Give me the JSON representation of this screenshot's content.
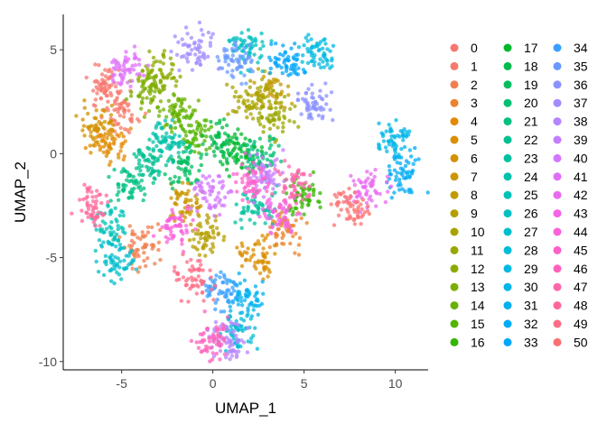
{
  "chart_data": {
    "type": "scatter",
    "title": "",
    "xlabel": "UMAP_1",
    "ylabel": "UMAP_2",
    "xlim": [
      -8.2,
      11.8
    ],
    "ylim": [
      -10.4,
      6.7
    ],
    "x_ticks": [
      -5,
      0,
      5,
      10
    ],
    "y_ticks": [
      -10,
      -5,
      0,
      5
    ],
    "grid": false,
    "legend_placement": "right",
    "legend_columns": 3,
    "cluster_count": 51,
    "legend": [
      "0",
      "1",
      "2",
      "3",
      "4",
      "5",
      "6",
      "7",
      "8",
      "9",
      "10",
      "11",
      "12",
      "13",
      "14",
      "15",
      "16",
      "17",
      "18",
      "19",
      "20",
      "21",
      "22",
      "23",
      "24",
      "25",
      "26",
      "27",
      "28",
      "29",
      "30",
      "31",
      "32",
      "33",
      "34",
      "35",
      "36",
      "37",
      "38",
      "39",
      "40",
      "41",
      "42",
      "43",
      "44",
      "45",
      "46",
      "47",
      "48",
      "49",
      "50"
    ],
    "series": [
      {
        "name": "0",
        "color": "#F8766D",
        "center": [
          -6.0,
          3.2
        ]
      },
      {
        "name": "1",
        "color": "#F7796B",
        "center": [
          -5.0,
          2.0
        ]
      },
      {
        "name": "2",
        "color": "#F07E4F",
        "center": [
          -4.0,
          -4.3
        ]
      },
      {
        "name": "3",
        "color": "#EA842F",
        "center": [
          4.0,
          -3.6
        ]
      },
      {
        "name": "4",
        "color": "#E38900",
        "center": [
          -5.7,
          0.5
        ]
      },
      {
        "name": "5",
        "color": "#DB8E00",
        "center": [
          2.5,
          -5.0
        ]
      },
      {
        "name": "6",
        "color": "#D39200",
        "center": [
          -6.3,
          1.3
        ]
      },
      {
        "name": "7",
        "color": "#C99700",
        "center": [
          -1.6,
          -2.5
        ]
      },
      {
        "name": "8",
        "color": "#BF9B00",
        "center": [
          3.1,
          3.0
        ]
      },
      {
        "name": "9",
        "color": "#B59F00",
        "center": [
          -0.3,
          -4.0
        ]
      },
      {
        "name": "10",
        "color": "#A8A300",
        "center": [
          2.0,
          2.5
        ]
      },
      {
        "name": "11",
        "color": "#9BA700",
        "center": [
          3.5,
          1.8
        ]
      },
      {
        "name": "12",
        "color": "#8CAB00",
        "center": [
          -3.0,
          4.0
        ]
      },
      {
        "name": "13",
        "color": "#7CAE00",
        "center": [
          -3.5,
          3.0
        ]
      },
      {
        "name": "14",
        "color": "#69B100",
        "center": [
          -2.0,
          2.0
        ]
      },
      {
        "name": "15",
        "color": "#53B400",
        "center": [
          -1.0,
          1.0
        ]
      },
      {
        "name": "16",
        "color": "#33B700",
        "center": [
          5.0,
          -2.0
        ]
      },
      {
        "name": "17",
        "color": "#00B92B",
        "center": [
          1.5,
          0.0
        ]
      },
      {
        "name": "18",
        "color": "#00BB4B",
        "center": [
          0.5,
          0.5
        ]
      },
      {
        "name": "19",
        "color": "#00BD61",
        "center": [
          -1.5,
          -0.5
        ]
      },
      {
        "name": "20",
        "color": "#00BE73",
        "center": [
          2.5,
          0.2
        ]
      },
      {
        "name": "21",
        "color": "#00C083",
        "center": [
          -4.5,
          -1.5
        ]
      },
      {
        "name": "22",
        "color": "#00C091",
        "center": [
          -3.5,
          -0.5
        ]
      },
      {
        "name": "23",
        "color": "#00C19F",
        "center": [
          2.3,
          -2.5
        ]
      },
      {
        "name": "24",
        "color": "#00C1AB",
        "center": [
          -2.5,
          0.5
        ]
      },
      {
        "name": "25",
        "color": "#00C1B7",
        "center": [
          -5.5,
          -3.5
        ]
      },
      {
        "name": "26",
        "color": "#00C0C2",
        "center": [
          2.0,
          5.0
        ]
      },
      {
        "name": "27",
        "color": "#00BECD",
        "center": [
          -5.2,
          -5.2
        ]
      },
      {
        "name": "28",
        "color": "#00BCD6",
        "center": [
          1.3,
          -8.5
        ]
      },
      {
        "name": "29",
        "color": "#00B9E0",
        "center": [
          5.8,
          4.8
        ]
      },
      {
        "name": "30",
        "color": "#00B5E8",
        "center": [
          10.0,
          0.8
        ]
      },
      {
        "name": "31",
        "color": "#00B1F0",
        "center": [
          1.8,
          -7.0
        ]
      },
      {
        "name": "32",
        "color": "#00ACF6",
        "center": [
          10.5,
          -1.0
        ]
      },
      {
        "name": "33",
        "color": "#00A6FC",
        "center": [
          4.0,
          4.5
        ]
      },
      {
        "name": "34",
        "color": "#3AA0FF",
        "center": [
          0.5,
          -6.5
        ]
      },
      {
        "name": "35",
        "color": "#6A99FF",
        "center": [
          1.2,
          4.5
        ]
      },
      {
        "name": "36",
        "color": "#8B92FF",
        "center": [
          5.5,
          2.5
        ]
      },
      {
        "name": "37",
        "color": "#A38BFF",
        "center": [
          -1.0,
          5.0
        ]
      },
      {
        "name": "38",
        "color": "#B584FF",
        "center": [
          0.8,
          -9.0
        ]
      },
      {
        "name": "39",
        "color": "#C57DFF",
        "center": [
          2.8,
          -1.0
        ]
      },
      {
        "name": "40",
        "color": "#D376FF",
        "center": [
          0.0,
          -2.0
        ]
      },
      {
        "name": "41",
        "color": "#DF70F9",
        "center": [
          -4.8,
          4.2
        ]
      },
      {
        "name": "42",
        "color": "#E96AF1",
        "center": [
          8.5,
          -1.8
        ]
      },
      {
        "name": "43",
        "color": "#F365E6",
        "center": [
          3.8,
          -3.0
        ]
      },
      {
        "name": "44",
        "color": "#F962DB",
        "center": [
          -2.0,
          -3.5
        ]
      },
      {
        "name": "45",
        "color": "#FF61CC",
        "center": [
          2.2,
          -1.4
        ]
      },
      {
        "name": "46",
        "color": "#FF62BC",
        "center": [
          0.0,
          -9.0
        ]
      },
      {
        "name": "47",
        "color": "#FF65AC",
        "center": [
          4.5,
          -1.5
        ]
      },
      {
        "name": "48",
        "color": "#FF689A",
        "center": [
          -6.5,
          -2.5
        ]
      },
      {
        "name": "49",
        "color": "#FD6C86",
        "center": [
          -1.0,
          -6.0
        ]
      },
      {
        "name": "50",
        "color": "#FB7172",
        "center": [
          7.5,
          -2.5
        ]
      }
    ]
  }
}
